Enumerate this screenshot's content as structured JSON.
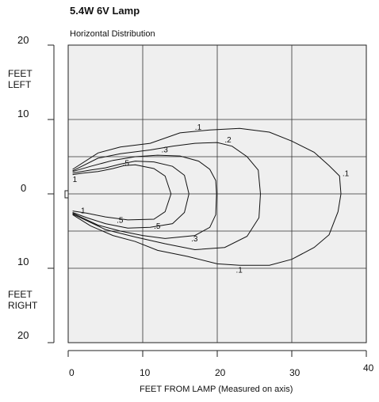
{
  "chart_data": {
    "type": "line",
    "title": "5.4W 6V Lamp",
    "subtitle": "Horizontal Distribution",
    "xlabel": "FEET FROM LAMP (Measured on axis)",
    "y_label_top": "FEET\nLEFT",
    "y_label_bottom": "FEET\nRIGHT",
    "x_ticks": [
      "0",
      "10",
      "20",
      "30",
      "40"
    ],
    "y_ticks": [
      "20",
      "10",
      "0",
      "10",
      "20"
    ],
    "xlim": [
      0,
      40
    ],
    "ylim": [
      -21,
      20
    ],
    "grid": true,
    "series": [
      {
        "name": ".1",
        "points": [
          [
            0.6,
            3.3
          ],
          [
            4,
            5.5
          ],
          [
            7,
            6.3
          ],
          [
            11,
            6.8
          ],
          [
            15,
            8.2
          ],
          [
            19,
            8.6
          ],
          [
            23,
            8.8
          ],
          [
            27,
            8.3
          ],
          [
            30,
            7.1
          ],
          [
            33,
            5.6
          ],
          [
            35,
            3.8
          ],
          [
            36.4,
            2.4
          ],
          [
            36.6,
            0
          ],
          [
            36.2,
            -2.4
          ],
          [
            35,
            -5.5
          ],
          [
            33,
            -7.2
          ],
          [
            30,
            -8.8
          ],
          [
            27,
            -9.6
          ],
          [
            23,
            -9.6
          ],
          [
            20,
            -9.4
          ],
          [
            16,
            -8.4
          ],
          [
            12,
            -7.6
          ],
          [
            9,
            -6.4
          ],
          [
            6,
            -5.6
          ],
          [
            3,
            -4.3
          ],
          [
            0.6,
            -2.8
          ]
        ]
      },
      {
        "name": ".2",
        "points": [
          [
            0.6,
            3.1
          ],
          [
            4,
            4.8
          ],
          [
            7,
            5.4
          ],
          [
            11,
            5.9
          ],
          [
            14,
            6.4
          ],
          [
            17,
            6.8
          ],
          [
            20,
            6.9
          ],
          [
            22,
            6.4
          ],
          [
            24,
            5
          ],
          [
            25.5,
            3.2
          ],
          [
            25.8,
            0
          ],
          [
            25.6,
            -3.2
          ],
          [
            24,
            -5.7
          ],
          [
            21,
            -7.2
          ],
          [
            17,
            -7.5
          ],
          [
            13,
            -6.7
          ],
          [
            9,
            -5.8
          ],
          [
            5,
            -4.8
          ],
          [
            0.6,
            -2.7
          ]
        ]
      },
      {
        "name": ".3",
        "points": [
          [
            0.6,
            3
          ],
          [
            3,
            3.7
          ],
          [
            6,
            4.5
          ],
          [
            9,
            5
          ],
          [
            12,
            5.2
          ],
          [
            15,
            5.1
          ],
          [
            17.5,
            4.4
          ],
          [
            19,
            3.3
          ],
          [
            19.8,
            1.8
          ],
          [
            19.9,
            0
          ],
          [
            19.8,
            -2.8
          ],
          [
            19,
            -4.5
          ],
          [
            17,
            -5.6
          ],
          [
            13,
            -6
          ],
          [
            10,
            -5.6
          ],
          [
            7,
            -5
          ],
          [
            4,
            -4.2
          ],
          [
            0.6,
            -2.6
          ]
        ]
      },
      {
        "name": ".5",
        "points": [
          [
            0.6,
            2.8
          ],
          [
            3,
            3.2
          ],
          [
            5,
            3.5
          ],
          [
            7,
            4
          ],
          [
            9,
            4.4
          ],
          [
            11.5,
            4.3
          ],
          [
            14,
            3.7
          ],
          [
            15.6,
            2.5
          ],
          [
            16.2,
            0
          ],
          [
            15.6,
            -2.5
          ],
          [
            14,
            -4
          ],
          [
            11,
            -4.5
          ],
          [
            8,
            -4.6
          ],
          [
            5,
            -4
          ],
          [
            2.5,
            -3.2
          ],
          [
            0.6,
            -2.5
          ]
        ]
      },
      {
        "name": "1",
        "points": [
          [
            0.6,
            2.6
          ],
          [
            2,
            2.8
          ],
          [
            4,
            3
          ],
          [
            6,
            3.4
          ],
          [
            7.5,
            3.8
          ],
          [
            9,
            3.9
          ],
          [
            11.5,
            3.4
          ],
          [
            13,
            2.4
          ],
          [
            13.8,
            0
          ],
          [
            13,
            -2.4
          ],
          [
            11.5,
            -3.4
          ],
          [
            8,
            -3.5
          ],
          [
            5,
            -3.1
          ],
          [
            2.5,
            -2.6
          ],
          [
            0.6,
            -2.3
          ]
        ]
      }
    ],
    "annotations": [
      {
        "text": ".1",
        "x": 17,
        "y": 8.6
      },
      {
        "text": ".2",
        "x": 21,
        "y": 6.9
      },
      {
        "text": ".3",
        "x": 12.5,
        "y": 5.6
      },
      {
        "text": ".5",
        "x": 7.3,
        "y": 3.8
      },
      {
        "text": "1",
        "x": 0.6,
        "y": 1.6
      },
      {
        "text": ".1",
        "x": 36.8,
        "y": 2.4
      },
      {
        "text": ".1",
        "x": 22.5,
        "y": -10.6
      },
      {
        "text": ".3",
        "x": 16.5,
        "y": -6.4
      },
      {
        "text": ".5",
        "x": 11.5,
        "y": -4.7
      },
      {
        "text": ".5",
        "x": 6.5,
        "y": -3.9
      },
      {
        "text": "1",
        "x": 1.7,
        "y": -2.6
      }
    ]
  }
}
